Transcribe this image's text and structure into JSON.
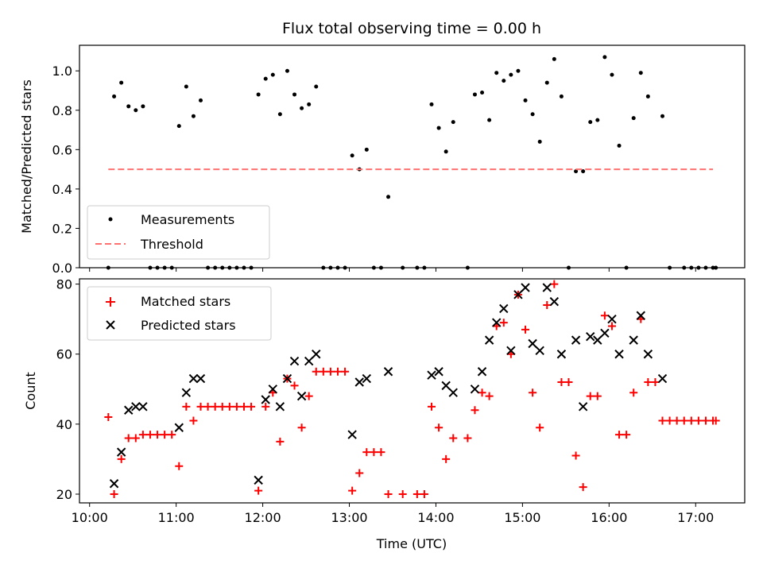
{
  "chart_data": [
    {
      "type": "scatter",
      "title": "Flux total observing time = 0.00 h",
      "xlabel": "",
      "ylabel": "Matched/Predicted stars",
      "xlim": [
        "09:53",
        "17:34"
      ],
      "ylim": [
        0,
        1.13
      ],
      "yticks": [
        "0.0",
        "0.2",
        "0.4",
        "0.6",
        "0.8",
        "1.0"
      ],
      "xticks": [
        "10:00",
        "11:00",
        "12:00",
        "13:00",
        "14:00",
        "15:00",
        "16:00",
        "17:00"
      ],
      "legend": {
        "position": "lower-left",
        "entries": [
          "Measurements",
          "Threshold"
        ]
      },
      "series": [
        {
          "name": "Measurements",
          "marker": "dot",
          "color": "#000000",
          "points": [
            [
              "10:13",
              0
            ],
            [
              "10:17",
              0.87
            ],
            [
              "10:22",
              0.94
            ],
            [
              "10:27",
              0.82
            ],
            [
              "10:32",
              0.8
            ],
            [
              "10:37",
              0.82
            ],
            [
              "10:42",
              0
            ],
            [
              "10:47",
              0
            ],
            [
              "10:52",
              0
            ],
            [
              "10:57",
              0
            ],
            [
              "11:02",
              0.72
            ],
            [
              "11:07",
              0.92
            ],
            [
              "11:12",
              0.77
            ],
            [
              "11:17",
              0.85
            ],
            [
              "11:22",
              0
            ],
            [
              "11:27",
              0
            ],
            [
              "11:32",
              0
            ],
            [
              "11:37",
              0
            ],
            [
              "11:42",
              0
            ],
            [
              "11:47",
              0
            ],
            [
              "11:52",
              0
            ],
            [
              "11:57",
              0.88
            ],
            [
              "12:02",
              0.96
            ],
            [
              "12:07",
              0.98
            ],
            [
              "12:12",
              0.78
            ],
            [
              "12:17",
              1.0
            ],
            [
              "12:22",
              0.88
            ],
            [
              "12:27",
              0.81
            ],
            [
              "12:32",
              0.83
            ],
            [
              "12:37",
              0.92
            ],
            [
              "12:42",
              0
            ],
            [
              "12:47",
              0
            ],
            [
              "12:52",
              0
            ],
            [
              "12:57",
              0
            ],
            [
              "13:02",
              0.57
            ],
            [
              "13:07",
              0.5
            ],
            [
              "13:12",
              0.6
            ],
            [
              "13:17",
              0
            ],
            [
              "13:22",
              0
            ],
            [
              "13:27",
              0.36
            ],
            [
              "13:37",
              0
            ],
            [
              "13:47",
              0
            ],
            [
              "13:52",
              0
            ],
            [
              "13:57",
              0.83
            ],
            [
              "14:02",
              0.71
            ],
            [
              "14:07",
              0.59
            ],
            [
              "14:12",
              0.74
            ],
            [
              "14:22",
              0
            ],
            [
              "14:27",
              0.88
            ],
            [
              "14:32",
              0.89
            ],
            [
              "14:37",
              0.75
            ],
            [
              "14:42",
              0.99
            ],
            [
              "14:47",
              0.95
            ],
            [
              "14:52",
              0.98
            ],
            [
              "14:57",
              1.0
            ],
            [
              "15:02",
              0.85
            ],
            [
              "15:07",
              0.78
            ],
            [
              "15:12",
              0.64
            ],
            [
              "15:17",
              0.94
            ],
            [
              "15:22",
              1.06
            ],
            [
              "15:27",
              0.87
            ],
            [
              "15:32",
              0
            ],
            [
              "15:37",
              0.49
            ],
            [
              "15:42",
              0.49
            ],
            [
              "15:47",
              0.74
            ],
            [
              "15:52",
              0.75
            ],
            [
              "15:57",
              1.07
            ],
            [
              "16:02",
              0.98
            ],
            [
              "16:07",
              0.62
            ],
            [
              "16:12",
              0
            ],
            [
              "16:17",
              0.76
            ],
            [
              "16:22",
              0.99
            ],
            [
              "16:27",
              0.87
            ],
            [
              "16:37",
              0.77
            ],
            [
              "16:42",
              0
            ],
            [
              "16:52",
              0
            ],
            [
              "16:57",
              0
            ],
            [
              "17:02",
              0
            ],
            [
              "17:07",
              0
            ],
            [
              "17:12",
              0
            ],
            [
              "17:14",
              0
            ]
          ]
        },
        {
          "name": "Threshold",
          "marker": "dashed-line",
          "color": "#ff7070",
          "points": [
            [
              "10:13",
              0.5
            ],
            [
              "17:12",
              0.5
            ]
          ]
        }
      ]
    },
    {
      "type": "scatter",
      "title": "",
      "xlabel": "Time (UTC)",
      "ylabel": "Count",
      "xlim": [
        "09:53",
        "17:34"
      ],
      "ylim": [
        17.5,
        81.5
      ],
      "yticks": [
        "20",
        "40",
        "60",
        "80"
      ],
      "xticks": [
        "10:00",
        "11:00",
        "12:00",
        "13:00",
        "14:00",
        "15:00",
        "16:00",
        "17:00"
      ],
      "legend": {
        "position": "top-left",
        "entries": [
          "Matched stars",
          "Predicted stars"
        ]
      },
      "series": [
        {
          "name": "Matched stars",
          "marker": "plus",
          "color": "#ff0000",
          "points": [
            [
              "10:13",
              42
            ],
            [
              "10:17",
              20
            ],
            [
              "10:22",
              30
            ],
            [
              "10:27",
              36
            ],
            [
              "10:32",
              36
            ],
            [
              "10:37",
              37
            ],
            [
              "10:42",
              37
            ],
            [
              "10:47",
              37
            ],
            [
              "10:52",
              37
            ],
            [
              "10:57",
              37
            ],
            [
              "11:02",
              28
            ],
            [
              "11:07",
              45
            ],
            [
              "11:12",
              41
            ],
            [
              "11:17",
              45
            ],
            [
              "11:22",
              45
            ],
            [
              "11:27",
              45
            ],
            [
              "11:32",
              45
            ],
            [
              "11:37",
              45
            ],
            [
              "11:42",
              45
            ],
            [
              "11:47",
              45
            ],
            [
              "11:52",
              45
            ],
            [
              "11:57",
              21
            ],
            [
              "12:02",
              45
            ],
            [
              "12:07",
              49
            ],
            [
              "12:12",
              35
            ],
            [
              "12:17",
              53
            ],
            [
              "12:22",
              51
            ],
            [
              "12:27",
              39
            ],
            [
              "12:32",
              48
            ],
            [
              "12:37",
              55
            ],
            [
              "12:42",
              55
            ],
            [
              "12:47",
              55
            ],
            [
              "12:52",
              55
            ],
            [
              "12:57",
              55
            ],
            [
              "13:02",
              21
            ],
            [
              "13:07",
              26
            ],
            [
              "13:12",
              32
            ],
            [
              "13:17",
              32
            ],
            [
              "13:22",
              32
            ],
            [
              "13:27",
              20
            ],
            [
              "13:37",
              20
            ],
            [
              "13:47",
              20
            ],
            [
              "13:52",
              20
            ],
            [
              "13:57",
              45
            ],
            [
              "14:02",
              39
            ],
            [
              "14:07",
              30
            ],
            [
              "14:12",
              36
            ],
            [
              "14:22",
              36
            ],
            [
              "14:27",
              44
            ],
            [
              "14:32",
              49
            ],
            [
              "14:37",
              48
            ],
            [
              "14:42",
              68
            ],
            [
              "14:47",
              69
            ],
            [
              "14:52",
              60
            ],
            [
              "14:57",
              77
            ],
            [
              "15:02",
              67
            ],
            [
              "15:07",
              49
            ],
            [
              "15:12",
              39
            ],
            [
              "15:17",
              74
            ],
            [
              "15:22",
              80
            ],
            [
              "15:27",
              52
            ],
            [
              "15:32",
              52
            ],
            [
              "15:37",
              31
            ],
            [
              "15:42",
              22
            ],
            [
              "15:47",
              48
            ],
            [
              "15:52",
              48
            ],
            [
              "15:57",
              71
            ],
            [
              "16:02",
              68
            ],
            [
              "16:07",
              37
            ],
            [
              "16:12",
              37
            ],
            [
              "16:17",
              49
            ],
            [
              "16:22",
              70
            ],
            [
              "16:27",
              52
            ],
            [
              "16:32",
              52
            ],
            [
              "16:37",
              41
            ],
            [
              "16:42",
              41
            ],
            [
              "16:47",
              41
            ],
            [
              "16:52",
              41
            ],
            [
              "16:57",
              41
            ],
            [
              "17:02",
              41
            ],
            [
              "17:07",
              41
            ],
            [
              "17:12",
              41
            ],
            [
              "17:14",
              41
            ]
          ]
        },
        {
          "name": "Predicted stars",
          "marker": "x",
          "color": "#000000",
          "points": [
            [
              "10:17",
              23
            ],
            [
              "10:22",
              32
            ],
            [
              "10:27",
              44
            ],
            [
              "10:32",
              45
            ],
            [
              "10:37",
              45
            ],
            [
              "11:02",
              39
            ],
            [
              "11:07",
              49
            ],
            [
              "11:12",
              53
            ],
            [
              "11:17",
              53
            ],
            [
              "11:57",
              24
            ],
            [
              "12:02",
              47
            ],
            [
              "12:07",
              50
            ],
            [
              "12:12",
              45
            ],
            [
              "12:17",
              53
            ],
            [
              "12:22",
              58
            ],
            [
              "12:27",
              48
            ],
            [
              "12:32",
              58
            ],
            [
              "12:37",
              60
            ],
            [
              "13:02",
              37
            ],
            [
              "13:07",
              52
            ],
            [
              "13:12",
              53
            ],
            [
              "13:27",
              55
            ],
            [
              "13:57",
              54
            ],
            [
              "14:02",
              55
            ],
            [
              "14:07",
              51
            ],
            [
              "14:12",
              49
            ],
            [
              "14:27",
              50
            ],
            [
              "14:32",
              55
            ],
            [
              "14:37",
              64
            ],
            [
              "14:42",
              69
            ],
            [
              "14:47",
              73
            ],
            [
              "14:52",
              61
            ],
            [
              "14:57",
              77
            ],
            [
              "15:02",
              79
            ],
            [
              "15:07",
              63
            ],
            [
              "15:12",
              61
            ],
            [
              "15:17",
              79
            ],
            [
              "15:22",
              75
            ],
            [
              "15:27",
              60
            ],
            [
              "15:37",
              64
            ],
            [
              "15:42",
              45
            ],
            [
              "15:47",
              65
            ],
            [
              "15:52",
              64
            ],
            [
              "15:57",
              66
            ],
            [
              "16:02",
              70
            ],
            [
              "16:07",
              60
            ],
            [
              "16:17",
              64
            ],
            [
              "16:22",
              71
            ],
            [
              "16:27",
              60
            ],
            [
              "16:37",
              53
            ]
          ]
        }
      ]
    }
  ]
}
